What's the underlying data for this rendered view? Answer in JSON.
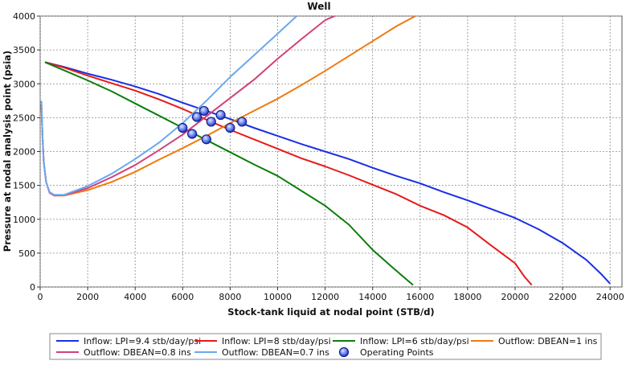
{
  "chart_data": {
    "type": "line",
    "title": "Well",
    "xlabel": "Stock-tank liquid at nodal point (STB/d)",
    "ylabel": "Pressure at nodal analysis point (psia)",
    "xlim": [
      0,
      24500
    ],
    "ylim": [
      0,
      4000
    ],
    "xticks": [
      0,
      2000,
      4000,
      6000,
      8000,
      10000,
      12000,
      14000,
      16000,
      18000,
      20000,
      22000,
      24000
    ],
    "yticks": [
      0,
      500,
      1000,
      1500,
      2000,
      2500,
      3000,
      3500,
      4000
    ],
    "grid": true,
    "legend": "bottom",
    "series": [
      {
        "name": "Inflow: LPI=9.4 stb/day/psi",
        "color": "#1a2ee6",
        "points": [
          [
            200,
            3320
          ],
          [
            1000,
            3250
          ],
          [
            2000,
            3150
          ],
          [
            3000,
            3060
          ],
          [
            4000,
            2960
          ],
          [
            5000,
            2850
          ],
          [
            6000,
            2720
          ],
          [
            7000,
            2600
          ],
          [
            8000,
            2480
          ],
          [
            9000,
            2350
          ],
          [
            10000,
            2230
          ],
          [
            11000,
            2110
          ],
          [
            12000,
            2000
          ],
          [
            13000,
            1890
          ],
          [
            14000,
            1760
          ],
          [
            15000,
            1640
          ],
          [
            16000,
            1530
          ],
          [
            17000,
            1400
          ],
          [
            18000,
            1280
          ],
          [
            19000,
            1150
          ],
          [
            20000,
            1020
          ],
          [
            21000,
            850
          ],
          [
            22000,
            650
          ],
          [
            23000,
            400
          ],
          [
            23600,
            200
          ],
          [
            24000,
            50
          ]
        ]
      },
      {
        "name": "Inflow: LPI=8 stb/day/psi",
        "color": "#e61a1a",
        "points": [
          [
            200,
            3320
          ],
          [
            1000,
            3240
          ],
          [
            2000,
            3120
          ],
          [
            3000,
            3010
          ],
          [
            4000,
            2900
          ],
          [
            5000,
            2770
          ],
          [
            6000,
            2630
          ],
          [
            7000,
            2470
          ],
          [
            8000,
            2320
          ],
          [
            9000,
            2180
          ],
          [
            10000,
            2040
          ],
          [
            11000,
            1900
          ],
          [
            12000,
            1780
          ],
          [
            13000,
            1650
          ],
          [
            14000,
            1510
          ],
          [
            15000,
            1370
          ],
          [
            16000,
            1200
          ],
          [
            17000,
            1060
          ],
          [
            18000,
            880
          ],
          [
            19000,
            610
          ],
          [
            20000,
            350
          ],
          [
            20400,
            150
          ],
          [
            20700,
            30
          ]
        ]
      },
      {
        "name": "Inflow: LPI=6 stb/day/psi",
        "color": "#0c7d0c",
        "points": [
          [
            200,
            3320
          ],
          [
            1000,
            3200
          ],
          [
            2000,
            3050
          ],
          [
            3000,
            2890
          ],
          [
            4000,
            2710
          ],
          [
            5000,
            2530
          ],
          [
            6000,
            2350
          ],
          [
            7000,
            2170
          ],
          [
            8000,
            1990
          ],
          [
            9000,
            1810
          ],
          [
            10000,
            1640
          ],
          [
            11000,
            1420
          ],
          [
            12000,
            1200
          ],
          [
            13000,
            920
          ],
          [
            14000,
            550
          ],
          [
            14800,
            300
          ],
          [
            15300,
            150
          ],
          [
            15700,
            30
          ]
        ]
      },
      {
        "name": "Outflow: DBEAN=1 ins",
        "color": "#f07a10",
        "points": [
          [
            50,
            2700
          ],
          [
            100,
            2200
          ],
          [
            150,
            1850
          ],
          [
            250,
            1550
          ],
          [
            400,
            1390
          ],
          [
            600,
            1350
          ],
          [
            1000,
            1350
          ],
          [
            2000,
            1430
          ],
          [
            3000,
            1550
          ],
          [
            4000,
            1700
          ],
          [
            5000,
            1880
          ],
          [
            6000,
            2050
          ],
          [
            7000,
            2230
          ],
          [
            8000,
            2420
          ],
          [
            9000,
            2600
          ],
          [
            10000,
            2780
          ],
          [
            11000,
            2980
          ],
          [
            12000,
            3190
          ],
          [
            13000,
            3410
          ],
          [
            14000,
            3630
          ],
          [
            15000,
            3850
          ],
          [
            15800,
            4000
          ]
        ]
      },
      {
        "name": "Outflow: DBEAN=0.8 ins",
        "color": "#d0407a",
        "points": [
          [
            50,
            2700
          ],
          [
            100,
            2200
          ],
          [
            150,
            1850
          ],
          [
            250,
            1550
          ],
          [
            400,
            1390
          ],
          [
            600,
            1350
          ],
          [
            1000,
            1355
          ],
          [
            2000,
            1460
          ],
          [
            3000,
            1620
          ],
          [
            4000,
            1800
          ],
          [
            5000,
            2020
          ],
          [
            6000,
            2250
          ],
          [
            7000,
            2520
          ],
          [
            8000,
            2790
          ],
          [
            9000,
            3060
          ],
          [
            10000,
            3370
          ],
          [
            11000,
            3660
          ],
          [
            12000,
            3940
          ],
          [
            12400,
            4000
          ]
        ]
      },
      {
        "name": "Outflow: DBEAN=0.7 ins",
        "color": "#6aa8ef",
        "points": [
          [
            50,
            2750
          ],
          [
            100,
            2200
          ],
          [
            150,
            1850
          ],
          [
            250,
            1550
          ],
          [
            400,
            1400
          ],
          [
            600,
            1360
          ],
          [
            1000,
            1360
          ],
          [
            2000,
            1490
          ],
          [
            3000,
            1670
          ],
          [
            4000,
            1890
          ],
          [
            5000,
            2130
          ],
          [
            6000,
            2420
          ],
          [
            7000,
            2750
          ],
          [
            8000,
            3100
          ],
          [
            9000,
            3420
          ],
          [
            10000,
            3740
          ],
          [
            10800,
            4000
          ]
        ]
      }
    ],
    "operating_points": {
      "name": "Operating Points",
      "points": [
        [
          6900,
          2600
        ],
        [
          7600,
          2540
        ],
        [
          8500,
          2440
        ],
        [
          6600,
          2510
        ],
        [
          7200,
          2440
        ],
        [
          8000,
          2350
        ],
        [
          6000,
          2350
        ],
        [
          6400,
          2260
        ],
        [
          7000,
          2180
        ]
      ]
    }
  }
}
